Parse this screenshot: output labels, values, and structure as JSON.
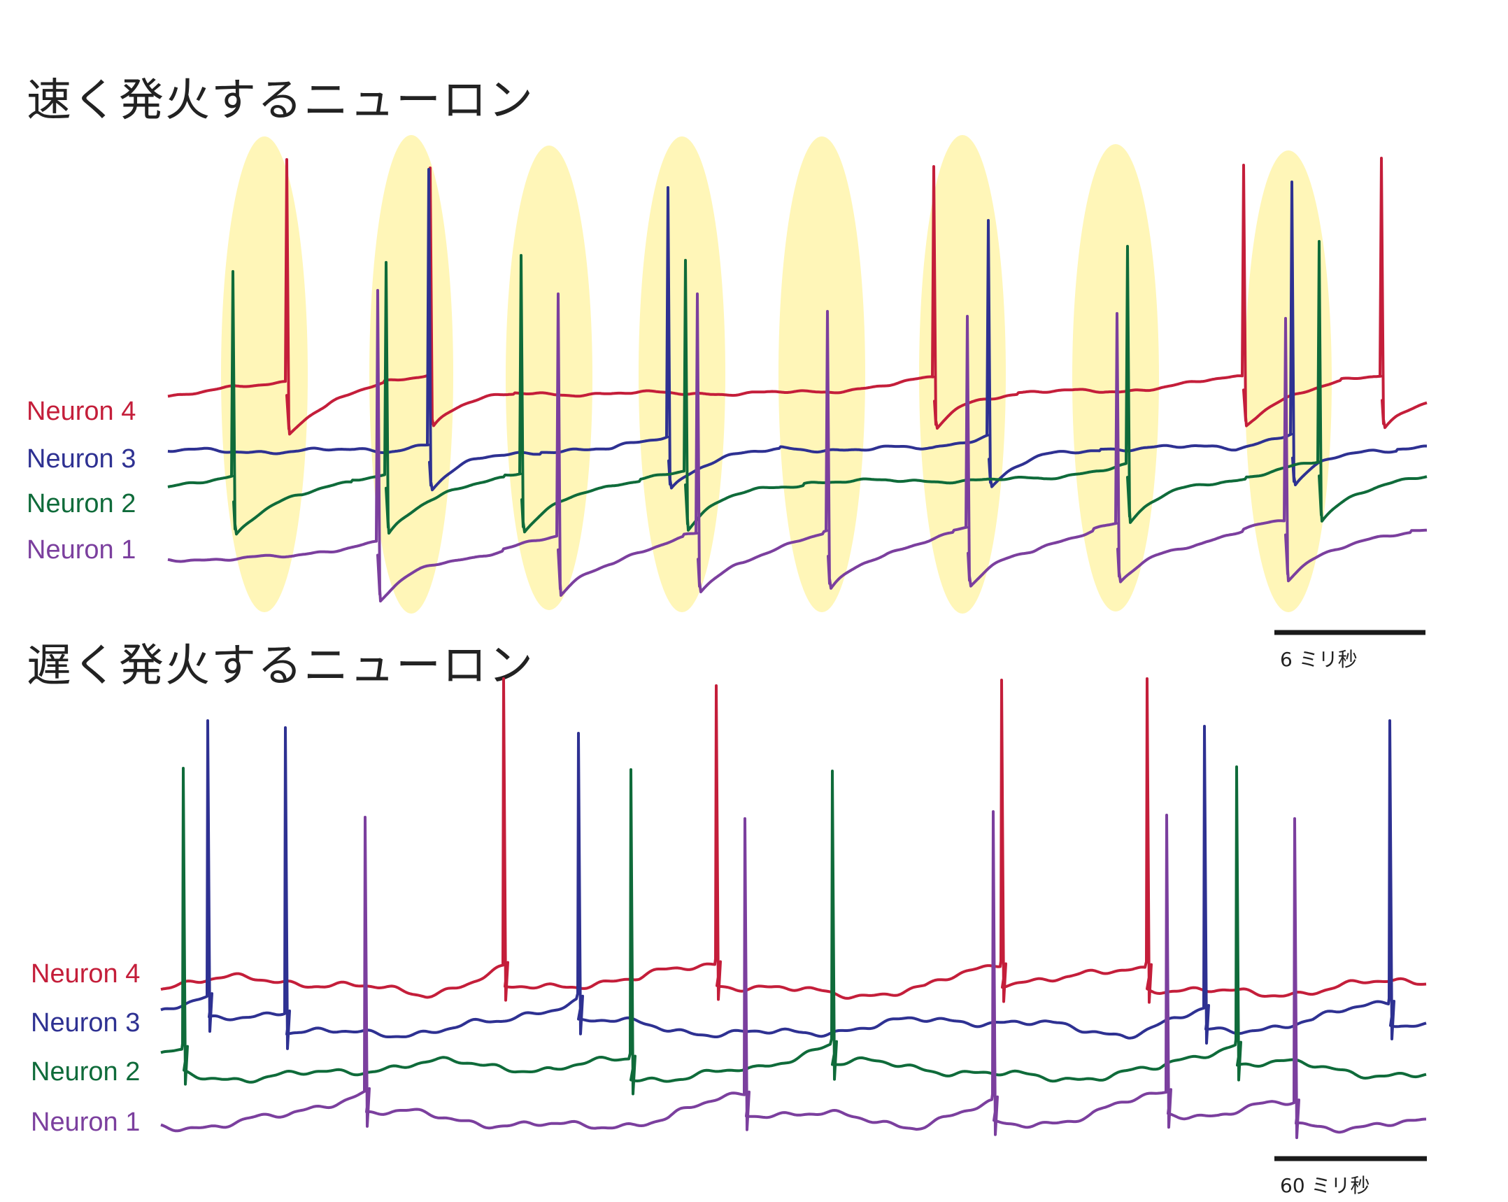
{
  "panels": {
    "fast": {
      "title": "速く発火するニューロン",
      "scalebar_label": "6 ミリ秒",
      "neuron_labels": [
        "Neuron 4",
        "Neuron 3",
        "Neuron 2",
        "Neuron 1"
      ]
    },
    "slow": {
      "title": "遅く発火するニューロン",
      "scalebar_label": "60 ミリ秒",
      "neuron_labels": [
        "Neuron 4",
        "Neuron 3",
        "Neuron 2",
        "Neuron 1"
      ]
    }
  },
  "colors": {
    "neuron_4": "#c41e3a",
    "neuron_3": "#2e3192",
    "neuron_2": "#0f6b3a",
    "neuron_1": "#7b3f9e",
    "sync_highlight": "#fff6b8",
    "scalebar": "#1a1a1a"
  }
}
